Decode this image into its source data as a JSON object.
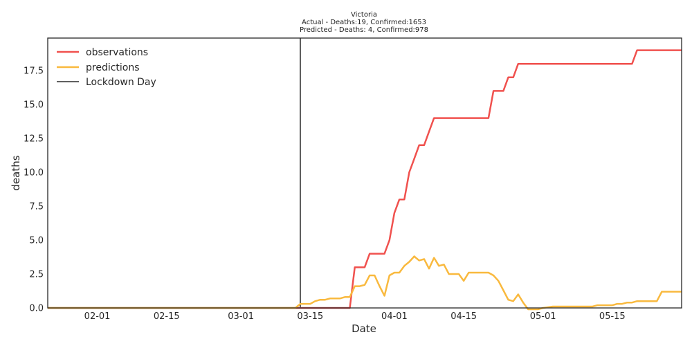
{
  "chart_data": {
    "type": "line",
    "title": "Victoria",
    "subtitle": [
      "Actual - Deaths:19,  Confirmed:1653",
      "Predicted - Deaths:  4, Confirmed:978"
    ],
    "xlabel": "Date",
    "ylabel": "deaths",
    "x_start": "01-22",
    "x_end": "05-29",
    "xticks": [
      "02-01",
      "02-15",
      "03-01",
      "03-15",
      "04-01",
      "04-15",
      "05-01",
      "05-15"
    ],
    "ylim": [
      0,
      19.9
    ],
    "yticks": [
      "0.0",
      "2.5",
      "5.0",
      "7.5",
      "10.0",
      "12.5",
      "15.0",
      "17.5"
    ],
    "grid": false,
    "legend_position": "top-left",
    "vline": {
      "x": "03-13",
      "name": "Lockdown Day",
      "color": "#000000"
    },
    "series": [
      {
        "name": "observations",
        "color": "#f0514e",
        "points": [
          [
            "01-22",
            0
          ],
          [
            "03-23",
            0
          ],
          [
            "03-24",
            3
          ],
          [
            "03-25",
            3
          ],
          [
            "03-26",
            3
          ],
          [
            "03-27",
            4
          ],
          [
            "03-28",
            4
          ],
          [
            "03-29",
            4
          ],
          [
            "03-30",
            4
          ],
          [
            "03-31",
            5
          ],
          [
            "04-01",
            7
          ],
          [
            "04-02",
            8
          ],
          [
            "04-03",
            8
          ],
          [
            "04-04",
            10
          ],
          [
            "04-05",
            11
          ],
          [
            "04-06",
            12
          ],
          [
            "04-07",
            12
          ],
          [
            "04-08",
            13
          ],
          [
            "04-09",
            14
          ],
          [
            "04-10",
            14
          ],
          [
            "04-20",
            14
          ],
          [
            "04-21",
            16
          ],
          [
            "04-22",
            16
          ],
          [
            "04-23",
            16
          ],
          [
            "04-24",
            17
          ],
          [
            "04-25",
            17
          ],
          [
            "04-26",
            18
          ],
          [
            "04-27",
            18
          ],
          [
            "05-19",
            18
          ],
          [
            "05-20",
            19
          ],
          [
            "05-29",
            19
          ]
        ]
      },
      {
        "name": "predictions",
        "color": "#f9b93e",
        "points": [
          [
            "01-22",
            0
          ],
          [
            "03-12",
            0
          ],
          [
            "03-13",
            0.3
          ],
          [
            "03-14",
            0.3
          ],
          [
            "03-15",
            0.3
          ],
          [
            "03-16",
            0.5
          ],
          [
            "03-17",
            0.6
          ],
          [
            "03-18",
            0.6
          ],
          [
            "03-19",
            0.7
          ],
          [
            "03-20",
            0.7
          ],
          [
            "03-21",
            0.7
          ],
          [
            "03-22",
            0.8
          ],
          [
            "03-23",
            0.8
          ],
          [
            "03-24",
            1.6
          ],
          [
            "03-25",
            1.6
          ],
          [
            "03-26",
            1.7
          ],
          [
            "03-27",
            2.4
          ],
          [
            "03-28",
            2.4
          ],
          [
            "03-29",
            1.6
          ],
          [
            "03-30",
            0.9
          ],
          [
            "03-31",
            2.4
          ],
          [
            "04-01",
            2.6
          ],
          [
            "04-02",
            2.6
          ],
          [
            "04-03",
            3.1
          ],
          [
            "04-04",
            3.4
          ],
          [
            "04-05",
            3.8
          ],
          [
            "04-06",
            3.5
          ],
          [
            "04-07",
            3.6
          ],
          [
            "04-08",
            2.9
          ],
          [
            "04-09",
            3.7
          ],
          [
            "04-10",
            3.1
          ],
          [
            "04-11",
            3.2
          ],
          [
            "04-12",
            2.5
          ],
          [
            "04-13",
            2.5
          ],
          [
            "04-14",
            2.5
          ],
          [
            "04-15",
            2.0
          ],
          [
            "04-16",
            2.6
          ],
          [
            "04-17",
            2.6
          ],
          [
            "04-18",
            2.6
          ],
          [
            "04-19",
            2.6
          ],
          [
            "04-20",
            2.6
          ],
          [
            "04-21",
            2.4
          ],
          [
            "04-22",
            2.0
          ],
          [
            "04-23",
            1.3
          ],
          [
            "04-24",
            0.6
          ],
          [
            "04-25",
            0.5
          ],
          [
            "04-26",
            1.0
          ],
          [
            "04-27",
            0.4
          ],
          [
            "04-28",
            -0.1
          ],
          [
            "04-30",
            -0.1
          ],
          [
            "05-01",
            0
          ],
          [
            "05-03",
            0.1
          ],
          [
            "05-04",
            0.1
          ],
          [
            "05-11",
            0.1
          ],
          [
            "05-12",
            0.2
          ],
          [
            "05-15",
            0.2
          ],
          [
            "05-16",
            0.3
          ],
          [
            "05-17",
            0.3
          ],
          [
            "05-18",
            0.4
          ],
          [
            "05-19",
            0.4
          ],
          [
            "05-20",
            0.5
          ],
          [
            "05-21",
            0.5
          ],
          [
            "05-24",
            0.5
          ],
          [
            "05-25",
            1.2
          ],
          [
            "05-29",
            1.2
          ]
        ]
      }
    ]
  }
}
